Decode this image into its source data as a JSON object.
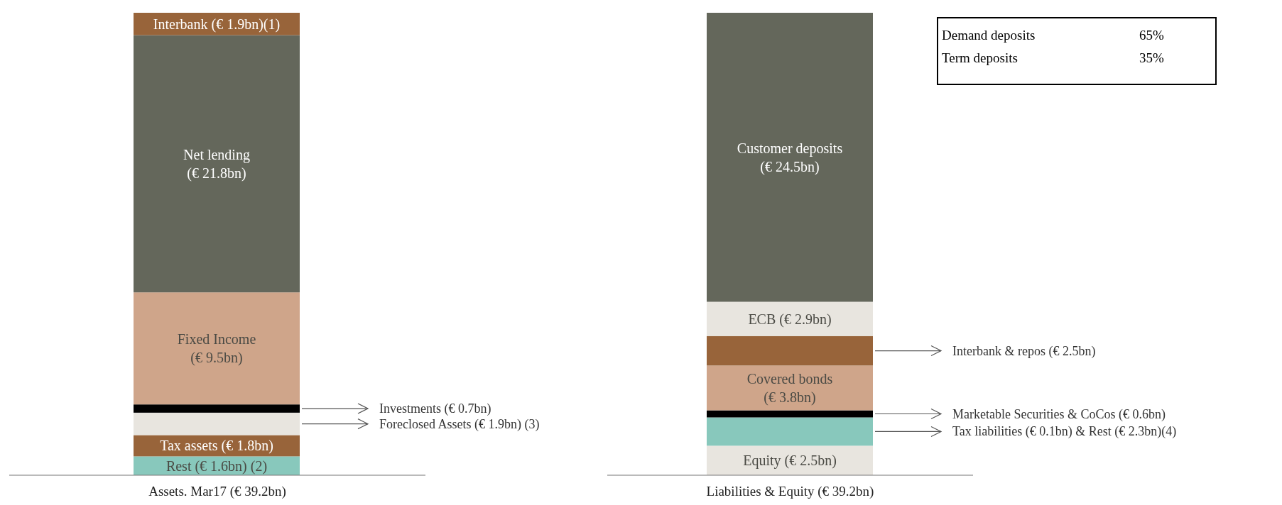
{
  "chart_data": {
    "type": "bar",
    "stacked": true,
    "categories": [
      "Assets. Mar17 (€ 39.2bn)",
      "Liabilities & Equity (€ 39.2bn)"
    ],
    "series": [
      {
        "name": "Rest",
        "color": "#88c8bc",
        "values": [
          1.6,
          null
        ],
        "value_labels": [
          "(€ 1.6bn) (2)",
          null
        ]
      },
      {
        "name": "Tax assets",
        "color": "#98643a",
        "values": [
          1.8,
          null
        ],
        "value_labels": [
          "(€ 1.8bn)",
          null
        ]
      },
      {
        "name": "Foreclosed Assets (€ 1.9bn) (3)",
        "color": "#e8e5df",
        "values": [
          1.9,
          null
        ]
      },
      {
        "name": "Investments (€ 0.7bn)",
        "color": "#000000",
        "values": [
          0.7,
          null
        ]
      },
      {
        "name": "Fixed Income",
        "color": "#cfa58a",
        "values": [
          9.5,
          null
        ],
        "value_labels": [
          "(€ 9.5bn)",
          null
        ]
      },
      {
        "name": "Net lending",
        "color": "#64675b",
        "values": [
          21.8,
          null
        ],
        "value_labels": [
          "(€ 21.8bn)",
          null
        ]
      },
      {
        "name": "Interbank",
        "color": "#98643a",
        "values": [
          1.9,
          null
        ],
        "value_labels": [
          "(€ 1.9bn)(1)",
          null
        ]
      },
      {
        "name": "Equity",
        "color": "#e8e5df",
        "values": [
          null,
          2.5
        ],
        "value_labels": [
          null,
          "(€ 2.5bn)"
        ]
      },
      {
        "name": "Tax liabilities (€ 0.1bn) & Rest (€ 2.3bn)(4)",
        "color": "#88c8bc",
        "values": [
          null,
          2.4
        ]
      },
      {
        "name": "Marketable Securities & CoCos (€ 0.6bn)",
        "color": "#000000",
        "values": [
          null,
          0.6
        ]
      },
      {
        "name": "Covered bonds",
        "color": "#cfa58a",
        "values": [
          null,
          3.8
        ],
        "value_labels": [
          null,
          "(€ 3.8bn)"
        ]
      },
      {
        "name": "Interbank & repos (€ 2.5bn)",
        "color": "#98643a",
        "values": [
          null,
          2.5
        ]
      },
      {
        "name": "ECB",
        "color": "#e8e5df",
        "values": [
          null,
          2.9
        ],
        "value_labels": [
          null,
          "(€ 2.9bn)"
        ]
      },
      {
        "name": "Customer deposits",
        "color": "#64675b",
        "values": [
          null,
          24.5
        ],
        "value_labels": [
          null,
          "(€ 24.5bn)"
        ]
      }
    ],
    "annotations": [
      "Demand deposits 65%",
      "Term deposits 35%"
    ]
  }
}
